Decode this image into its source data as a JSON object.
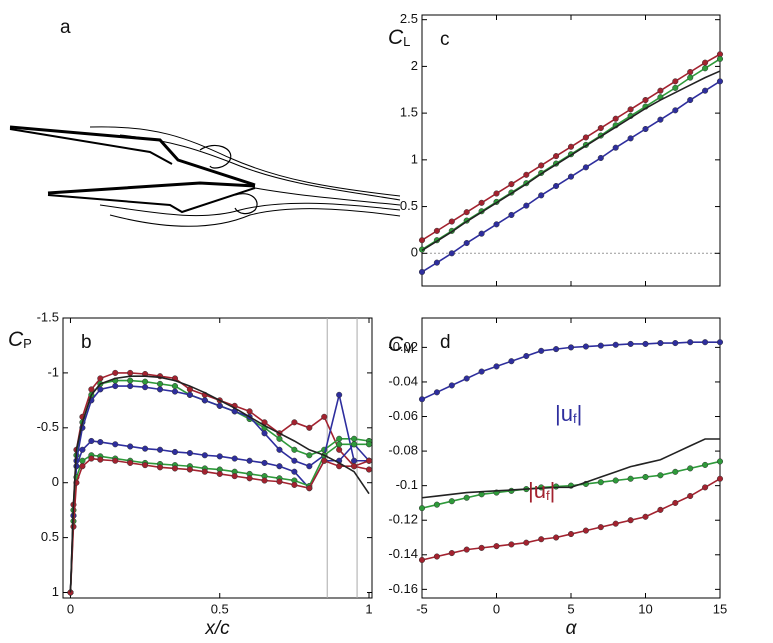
{
  "panel_a": {
    "label": "a"
  },
  "chart_data": [
    {
      "type": "line",
      "panel_label": "b",
      "ylabel": "C",
      "ylabel_subscript": "P",
      "xlabel": "x/c",
      "xlim": [
        -0.025,
        1.01
      ],
      "ylim": [
        -1.5,
        1.05
      ],
      "y_inverted": true,
      "xticks": [
        0,
        0.5,
        1
      ],
      "yticks": [
        -1.5,
        -1,
        -0.5,
        0,
        0.5,
        1
      ],
      "vlines": [
        0.86,
        0.96
      ],
      "x": [
        0,
        0.01,
        0.02,
        0.04,
        0.07,
        0.1,
        0.15,
        0.2,
        0.25,
        0.3,
        0.35,
        0.4,
        0.45,
        0.5,
        0.55,
        0.6,
        0.65,
        0.7,
        0.75,
        0.8,
        0.85,
        0.9,
        0.95,
        1.0
      ],
      "series": [
        {
          "color": "#a3222f",
          "markers": true,
          "values": [
            1.0,
            0.2,
            -0.3,
            -0.6,
            -0.85,
            -0.95,
            -1.0,
            -1.0,
            -0.99,
            -0.97,
            -0.95,
            -0.85,
            -0.8,
            -0.75,
            -0.7,
            -0.65,
            -0.55,
            -0.45,
            -0.55,
            -0.5,
            -0.6,
            -0.3,
            -0.15,
            -0.12
          ]
        },
        {
          "color": "#2e9a3a",
          "markers": true,
          "values": [
            1.0,
            0.25,
            -0.25,
            -0.55,
            -0.8,
            -0.9,
            -0.93,
            -0.93,
            -0.92,
            -0.9,
            -0.88,
            -0.8,
            -0.75,
            -0.7,
            -0.65,
            -0.58,
            -0.5,
            -0.4,
            -0.3,
            -0.25,
            -0.3,
            -0.4,
            -0.4,
            -0.38
          ]
        },
        {
          "color": "#2e2e9e",
          "markers": true,
          "values": [
            1.0,
            0.3,
            -0.2,
            -0.5,
            -0.75,
            -0.85,
            -0.88,
            -0.88,
            -0.87,
            -0.85,
            -0.83,
            -0.8,
            -0.75,
            -0.7,
            -0.65,
            -0.6,
            -0.45,
            -0.3,
            -0.2,
            -0.15,
            -0.25,
            -0.8,
            -0.2,
            -0.2
          ]
        },
        {
          "color": "#2e2e9e",
          "markers": true,
          "values": [
            1.0,
            0.3,
            -0.15,
            -0.3,
            -0.38,
            -0.37,
            -0.35,
            -0.33,
            -0.31,
            -0.3,
            -0.28,
            -0.27,
            -0.25,
            -0.24,
            -0.22,
            -0.2,
            -0.18,
            -0.15,
            -0.1,
            0.05,
            -0.2,
            -0.2,
            -0.35,
            -0.2
          ]
        },
        {
          "color": "#2e9a3a",
          "markers": true,
          "values": [
            1.0,
            0.35,
            -0.05,
            -0.2,
            -0.25,
            -0.24,
            -0.22,
            -0.2,
            -0.18,
            -0.17,
            -0.16,
            -0.15,
            -0.13,
            -0.12,
            -0.1,
            -0.08,
            -0.06,
            -0.04,
            -0.02,
            0.03,
            -0.25,
            -0.35,
            -0.35,
            -0.35
          ]
        },
        {
          "color": "#a3222f",
          "markers": true,
          "values": [
            1.0,
            0.4,
            0.0,
            -0.15,
            -0.22,
            -0.21,
            -0.2,
            -0.18,
            -0.16,
            -0.14,
            -0.13,
            -0.12,
            -0.1,
            -0.08,
            -0.06,
            -0.04,
            -0.02,
            -0.01,
            0.02,
            0.05,
            -0.2,
            -0.15,
            -0.15,
            -0.2
          ]
        },
        {
          "color": "#222222",
          "markers": false,
          "values": [
            1.0,
            0.2,
            -0.3,
            -0.55,
            -0.8,
            -0.9,
            -0.95,
            -0.97,
            -0.97,
            -0.96,
            -0.93,
            -0.88,
            -0.82,
            -0.75,
            -0.68,
            -0.6,
            -0.52,
            -0.45,
            -0.38,
            -0.3,
            -0.25,
            -0.18,
            -0.1,
            0.1
          ]
        }
      ]
    },
    {
      "type": "line",
      "panel_label": "c",
      "ylabel": "C",
      "ylabel_subscript": "L",
      "xlim": [
        -5,
        15
      ],
      "ylim": [
        -0.35,
        2.55
      ],
      "xticks": [
        -5,
        0,
        5,
        10,
        15
      ],
      "xtick_labels": false,
      "yticks": [
        0,
        0.5,
        1,
        1.5,
        2,
        2.5
      ],
      "reference_line": 0,
      "x": [
        -5,
        -4,
        -3,
        -2,
        -1,
        0,
        1,
        2,
        3,
        4,
        5,
        6,
        7,
        8,
        9,
        10,
        11,
        12,
        13,
        14,
        15
      ],
      "series": [
        {
          "color": "#a3222f",
          "markers": true,
          "values": [
            0.14,
            0.24,
            0.34,
            0.44,
            0.54,
            0.64,
            0.74,
            0.84,
            0.94,
            1.04,
            1.14,
            1.24,
            1.34,
            1.44,
            1.54,
            1.64,
            1.74,
            1.84,
            1.94,
            2.04,
            2.13
          ]
        },
        {
          "color": "#2e9a3a",
          "markers": true,
          "values": [
            0.04,
            0.14,
            0.24,
            0.35,
            0.45,
            0.55,
            0.65,
            0.75,
            0.86,
            0.96,
            1.06,
            1.16,
            1.26,
            1.37,
            1.47,
            1.57,
            1.67,
            1.77,
            1.88,
            1.98,
            2.08
          ]
        },
        {
          "color": "#2e2e9e",
          "markers": true,
          "values": [
            -0.2,
            -0.1,
            0,
            0.11,
            0.21,
            0.31,
            0.41,
            0.51,
            0.62,
            0.72,
            0.82,
            0.92,
            1.02,
            1.13,
            1.23,
            1.33,
            1.43,
            1.53,
            1.64,
            1.74,
            1.84
          ]
        },
        {
          "color": "#222222",
          "markers": false,
          "values": [
            0.03,
            0.13,
            0.23,
            0.34,
            0.44,
            0.54,
            0.64,
            0.74,
            0.85,
            0.95,
            1.05,
            1.15,
            1.25,
            1.35,
            1.45,
            1.55,
            1.64,
            1.72,
            1.8,
            1.88,
            1.95
          ]
        }
      ]
    },
    {
      "type": "line",
      "panel_label": "d",
      "ylabel": "C",
      "ylabel_subscript": "M",
      "xlabel": "α",
      "xlim": [
        -5,
        15
      ],
      "ylim": [
        -0.165,
        -0.003
      ],
      "xticks": [
        -5,
        0,
        5,
        10,
        15
      ],
      "yticks": [
        -0.16,
        -0.14,
        -0.12,
        -0.1,
        -0.08,
        -0.06,
        -0.04,
        -0.02
      ],
      "x": [
        -5,
        -4,
        -3,
        -2,
        -1,
        0,
        1,
        2,
        3,
        4,
        5,
        6,
        7,
        8,
        9,
        10,
        11,
        12,
        13,
        14,
        15
      ],
      "series": [
        {
          "color": "#2e2e9e",
          "markers": true,
          "values": [
            -0.05,
            -0.046,
            -0.042,
            -0.038,
            -0.034,
            -0.031,
            -0.028,
            -0.025,
            -0.022,
            -0.021,
            -0.02,
            -0.0195,
            -0.019,
            -0.0185,
            -0.018,
            -0.018,
            -0.0175,
            -0.0175,
            -0.017,
            -0.017,
            -0.017
          ]
        },
        {
          "color": "#2e9a3a",
          "markers": true,
          "values": [
            -0.113,
            -0.111,
            -0.109,
            -0.107,
            -0.105,
            -0.104,
            -0.103,
            -0.102,
            -0.101,
            -0.1005,
            -0.1,
            -0.099,
            -0.098,
            -0.097,
            -0.096,
            -0.095,
            -0.094,
            -0.092,
            -0.09,
            -0.088,
            -0.086
          ]
        },
        {
          "color": "#a3222f",
          "markers": true,
          "values": [
            -0.143,
            -0.141,
            -0.139,
            -0.137,
            -0.136,
            -0.135,
            -0.134,
            -0.133,
            -0.131,
            -0.13,
            -0.128,
            -0.126,
            -0.124,
            -0.122,
            -0.12,
            -0.118,
            -0.114,
            -0.11,
            -0.106,
            -0.101,
            -0.096
          ]
        },
        {
          "color": "#222222",
          "markers": false,
          "values": [
            -0.107,
            -0.106,
            -0.105,
            -0.104,
            -0.1035,
            -0.103,
            -0.1025,
            -0.102,
            -0.1015,
            -0.101,
            -0.101,
            -0.098,
            -0.095,
            -0.092,
            -0.089,
            -0.087,
            -0.085,
            -0.081,
            -0.077,
            -0.073,
            -0.073
          ]
        }
      ],
      "annotations": [
        {
          "text": "|u",
          "sub": "f",
          "end": "|",
          "color": "#2e2e9e"
        },
        {
          "text": "|u",
          "sub": "f",
          "end": "|",
          "color": "#a3222f"
        }
      ]
    }
  ]
}
